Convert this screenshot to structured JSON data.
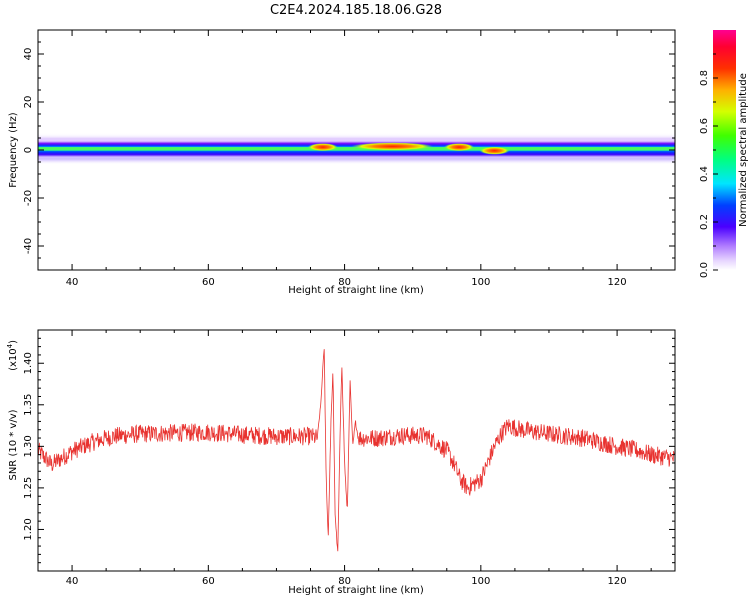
{
  "title": "C2E4.2024.185.18.06.G28",
  "colors": {
    "snr_line": "#e8322f",
    "axes": "#000000",
    "background": "#ffffff"
  },
  "colorbar": {
    "label": "Normalized spectral amplitude",
    "range": [
      0,
      1
    ],
    "ticks": [
      {
        "v": 0.0,
        "label": "0.0"
      },
      {
        "v": 0.2,
        "label": "0.2"
      },
      {
        "v": 0.4,
        "label": "0.4"
      },
      {
        "v": 0.6,
        "label": "0.6"
      },
      {
        "v": 0.8,
        "label": "0.8"
      }
    ],
    "colormap": "hsv-like: white/violet (0) → blue → cyan → green → yellow → orange → red → magenta (1)"
  },
  "chart_data": [
    {
      "type": "heatmap",
      "title": "",
      "xlabel": "Height of straight line (km)",
      "ylabel": "Frequency (Hz)",
      "xlim": [
        35,
        128.5
      ],
      "ylim": [
        -50,
        50
      ],
      "xticks": [
        {
          "v": 40,
          "label": "40"
        },
        {
          "v": 60,
          "label": "60"
        },
        {
          "v": 80,
          "label": "80"
        },
        {
          "v": 100,
          "label": "100"
        },
        {
          "v": 120,
          "label": "120"
        }
      ],
      "yticks": [
        {
          "v": 40,
          "label": "40"
        },
        {
          "v": 20,
          "label": "20"
        },
        {
          "v": 0,
          "label": "0"
        },
        {
          "v": -20,
          "label": "-20"
        },
        {
          "v": -40,
          "label": "-40"
        }
      ],
      "band": {
        "center_hz": 0.5,
        "half_width_hz": 3,
        "description": "Narrow spectral band near 0 Hz across all heights; peak amplitude ~1.0 near 77, 80-95 and 97-98 km, local maximum near 102 km"
      },
      "peaks": [
        {
          "x": 76.8,
          "y": 1.2,
          "amplitude": 0.95
        },
        {
          "x": 87.0,
          "y": 1.5,
          "amplitude": 0.95
        },
        {
          "x": 96.8,
          "y": 1.2,
          "amplitude": 0.95
        },
        {
          "x": 102.0,
          "y": -0.3,
          "amplitude": 0.9
        }
      ]
    },
    {
      "type": "line",
      "title": "",
      "xlabel": "Height of straight line (km)",
      "ylabel": "SNR (10 * v/v)",
      "yscale_label": "(x10",
      "yscale_exp": "4",
      "yscale_close": ")",
      "xlim": [
        35,
        128.5
      ],
      "ylim": [
        1.15,
        1.44
      ],
      "xticks": [
        {
          "v": 40,
          "label": "40"
        },
        {
          "v": 60,
          "label": "60"
        },
        {
          "v": 80,
          "label": "80"
        },
        {
          "v": 100,
          "label": "100"
        },
        {
          "v": 120,
          "label": "120"
        }
      ],
      "yticks": [
        {
          "v": 1.2,
          "label": "1.20"
        },
        {
          "v": 1.25,
          "label": "1.25"
        },
        {
          "v": 1.3,
          "label": "1.30"
        },
        {
          "v": 1.35,
          "label": "1.35"
        },
        {
          "v": 1.4,
          "label": "1.40"
        }
      ],
      "series": [
        {
          "color": "#e8322f",
          "x": [
            35,
            37,
            40,
            43,
            46,
            50,
            55,
            60,
            65,
            70,
            73,
            75,
            76,
            76.5,
            77,
            77.3,
            77.6,
            78,
            78.3,
            78.6,
            79,
            79.3,
            79.6,
            80,
            80.4,
            80.8,
            81.2,
            81.6,
            82,
            85,
            88,
            92,
            95,
            96,
            97,
            98,
            99,
            100,
            101,
            102,
            103,
            104,
            106,
            110,
            115,
            120,
            123,
            125,
            128.5
          ],
          "y": [
            1.295,
            1.278,
            1.294,
            1.305,
            1.312,
            1.315,
            1.316,
            1.317,
            1.314,
            1.312,
            1.312,
            1.312,
            1.31,
            1.35,
            1.42,
            1.26,
            1.19,
            1.33,
            1.39,
            1.22,
            1.17,
            1.3,
            1.4,
            1.28,
            1.22,
            1.38,
            1.3,
            1.33,
            1.31,
            1.31,
            1.313,
            1.313,
            1.295,
            1.28,
            1.26,
            1.25,
            1.255,
            1.26,
            1.28,
            1.3,
            1.315,
            1.325,
            1.32,
            1.315,
            1.31,
            1.3,
            1.295,
            1.29,
            1.285
          ]
        }
      ]
    }
  ]
}
